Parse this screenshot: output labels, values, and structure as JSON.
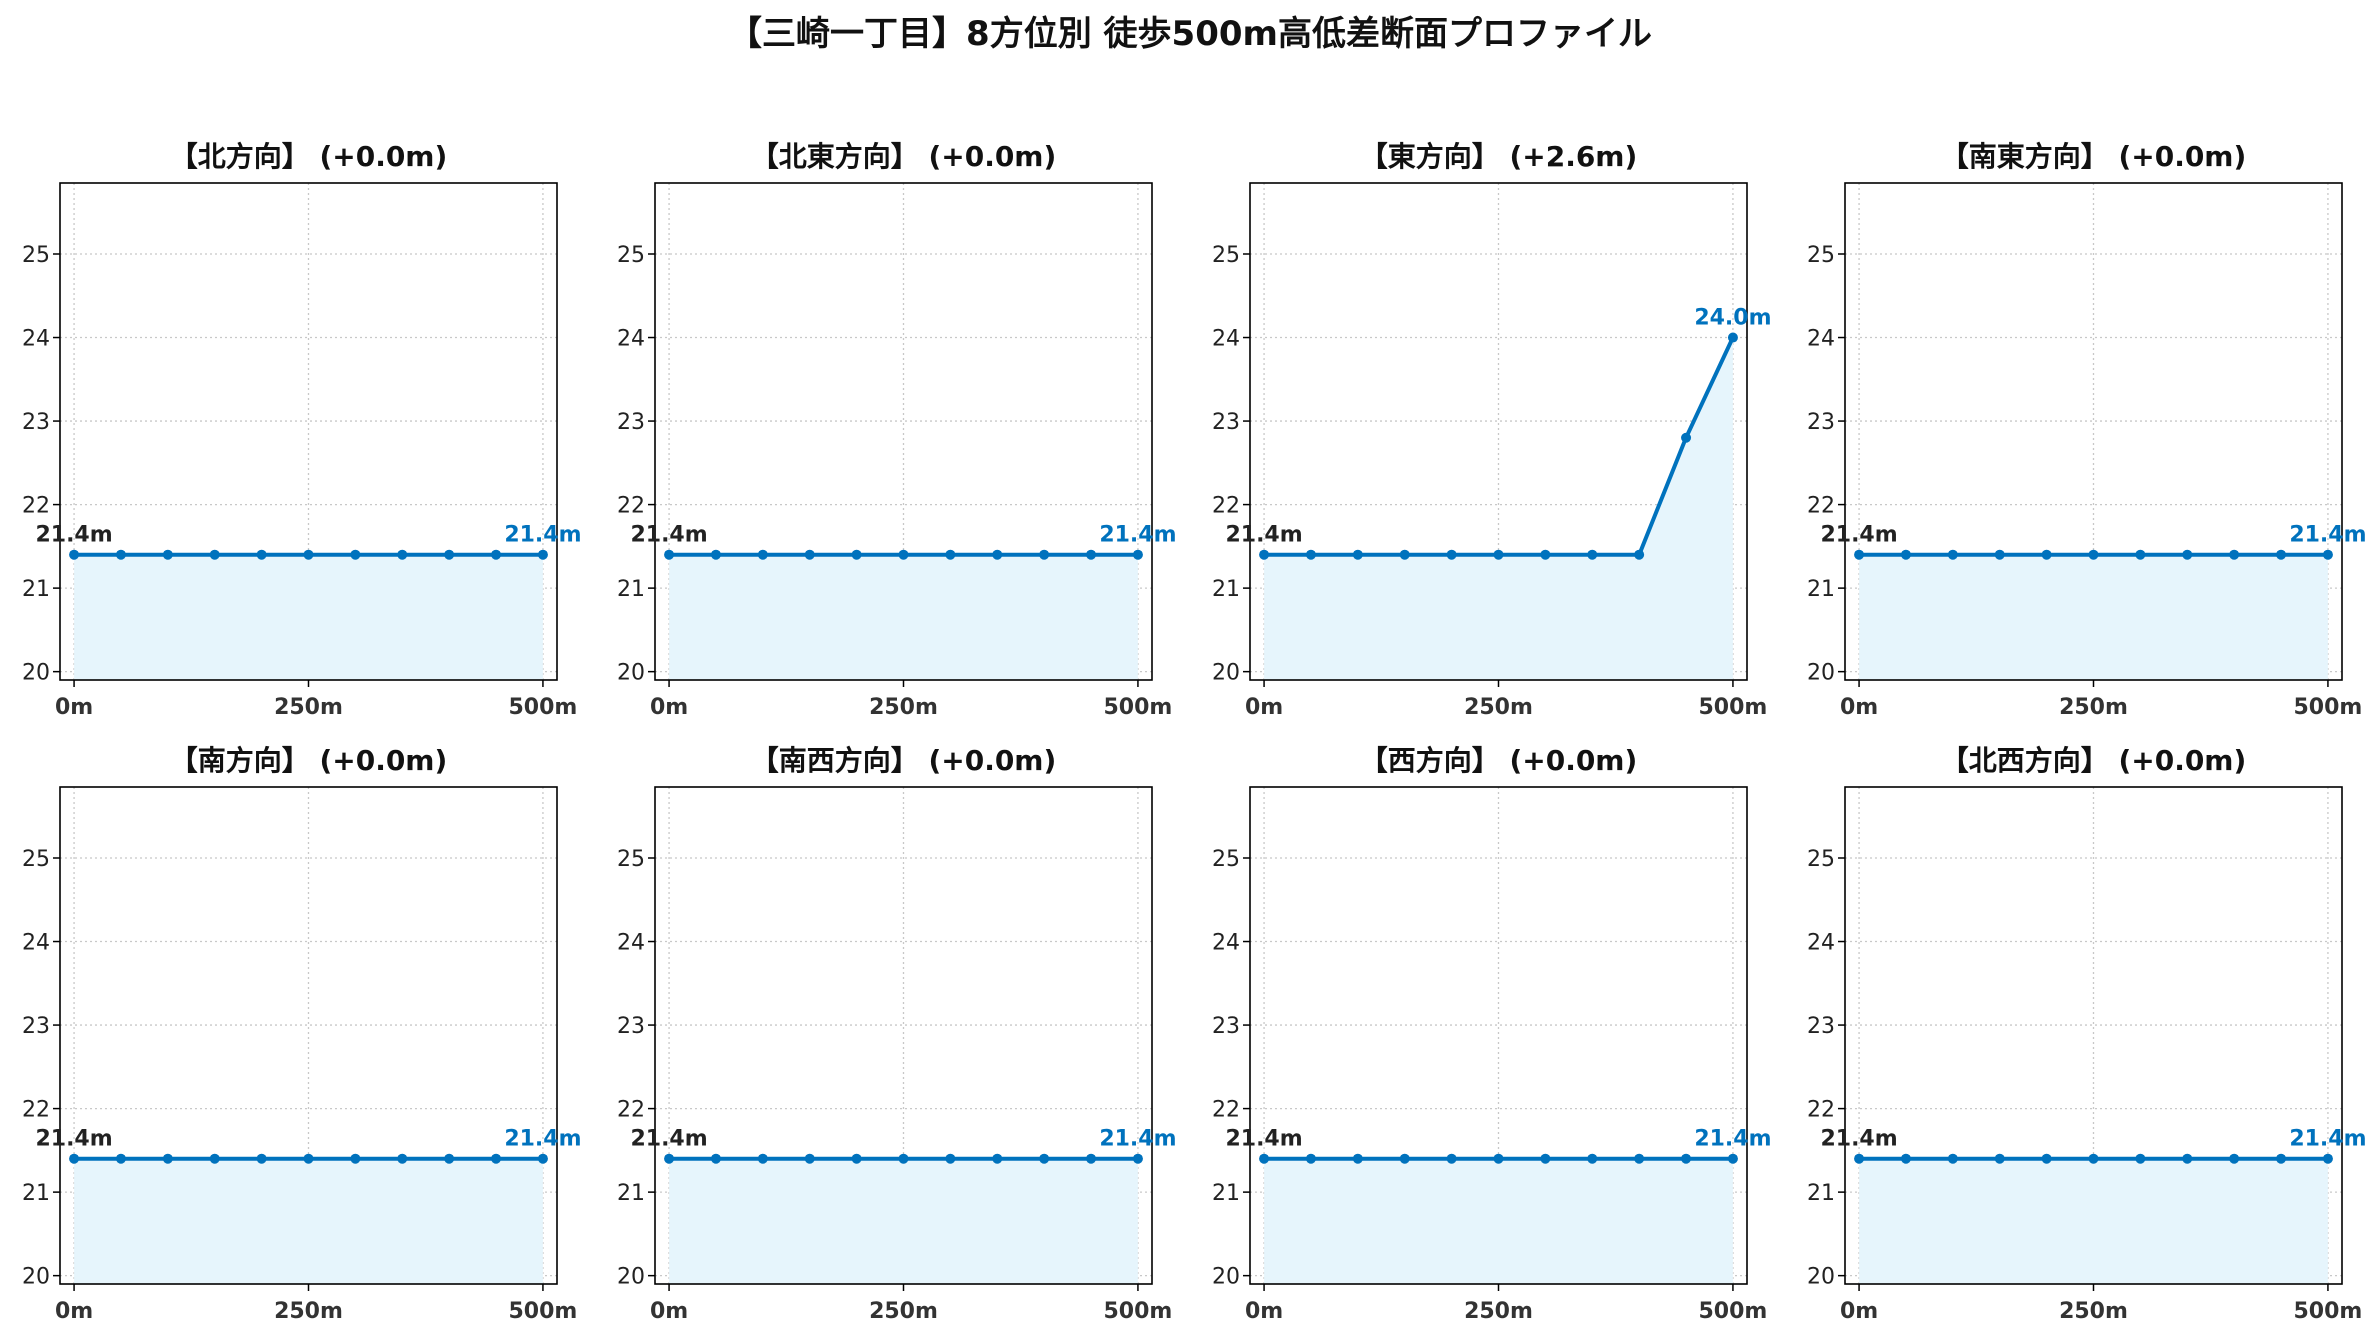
{
  "title": "【三崎一丁目】8方位別 徒歩500m高低差断面プロファイル",
  "colors": {
    "line": "#0072BD",
    "fill": "#E6F5FC",
    "grid": "#C8C8C8",
    "startLabel": "#222222",
    "endLabel": "#0072BD"
  },
  "chart_data": [
    {
      "type": "area",
      "title": "【北方向】 (+0.0m)",
      "x": [
        0,
        50,
        100,
        150,
        200,
        250,
        300,
        350,
        400,
        450,
        500
      ],
      "y": [
        21.4,
        21.4,
        21.4,
        21.4,
        21.4,
        21.4,
        21.4,
        21.4,
        21.4,
        21.4,
        21.4
      ],
      "xticks": [
        "0m",
        "250m",
        "500m"
      ],
      "yticks": [
        20,
        21,
        22,
        23,
        24,
        25
      ],
      "ylim": [
        19.9,
        25.85
      ],
      "xlim": [
        -15,
        515
      ],
      "grid": true,
      "start_label": "21.4m",
      "end_label": "21.4m"
    },
    {
      "type": "area",
      "title": "【北東方向】 (+0.0m)",
      "x": [
        0,
        50,
        100,
        150,
        200,
        250,
        300,
        350,
        400,
        450,
        500
      ],
      "y": [
        21.4,
        21.4,
        21.4,
        21.4,
        21.4,
        21.4,
        21.4,
        21.4,
        21.4,
        21.4,
        21.4
      ],
      "xticks": [
        "0m",
        "250m",
        "500m"
      ],
      "yticks": [
        20,
        21,
        22,
        23,
        24,
        25
      ],
      "ylim": [
        19.9,
        25.85
      ],
      "xlim": [
        -15,
        515
      ],
      "grid": true,
      "start_label": "21.4m",
      "end_label": "21.4m"
    },
    {
      "type": "area",
      "title": "【東方向】 (+2.6m)",
      "x": [
        0,
        50,
        100,
        150,
        200,
        250,
        300,
        350,
        400,
        450,
        500
      ],
      "y": [
        21.4,
        21.4,
        21.4,
        21.4,
        21.4,
        21.4,
        21.4,
        21.4,
        21.4,
        22.8,
        24.0
      ],
      "xticks": [
        "0m",
        "250m",
        "500m"
      ],
      "yticks": [
        20,
        21,
        22,
        23,
        24,
        25
      ],
      "ylim": [
        19.9,
        25.85
      ],
      "xlim": [
        -15,
        515
      ],
      "grid": true,
      "start_label": "21.4m",
      "end_label": "24.0m"
    },
    {
      "type": "area",
      "title": "【南東方向】 (+0.0m)",
      "x": [
        0,
        50,
        100,
        150,
        200,
        250,
        300,
        350,
        400,
        450,
        500
      ],
      "y": [
        21.4,
        21.4,
        21.4,
        21.4,
        21.4,
        21.4,
        21.4,
        21.4,
        21.4,
        21.4,
        21.4
      ],
      "xticks": [
        "0m",
        "250m",
        "500m"
      ],
      "yticks": [
        20,
        21,
        22,
        23,
        24,
        25
      ],
      "ylim": [
        19.9,
        25.85
      ],
      "xlim": [
        -15,
        515
      ],
      "grid": true,
      "start_label": "21.4m",
      "end_label": "21.4m"
    },
    {
      "type": "area",
      "title": "【南方向】 (+0.0m)",
      "x": [
        0,
        50,
        100,
        150,
        200,
        250,
        300,
        350,
        400,
        450,
        500
      ],
      "y": [
        21.4,
        21.4,
        21.4,
        21.4,
        21.4,
        21.4,
        21.4,
        21.4,
        21.4,
        21.4,
        21.4
      ],
      "xticks": [
        "0m",
        "250m",
        "500m"
      ],
      "yticks": [
        20,
        21,
        22,
        23,
        24,
        25
      ],
      "ylim": [
        19.9,
        25.85
      ],
      "xlim": [
        -15,
        515
      ],
      "grid": true,
      "start_label": "21.4m",
      "end_label": "21.4m"
    },
    {
      "type": "area",
      "title": "【南西方向】 (+0.0m)",
      "x": [
        0,
        50,
        100,
        150,
        200,
        250,
        300,
        350,
        400,
        450,
        500
      ],
      "y": [
        21.4,
        21.4,
        21.4,
        21.4,
        21.4,
        21.4,
        21.4,
        21.4,
        21.4,
        21.4,
        21.4
      ],
      "xticks": [
        "0m",
        "250m",
        "500m"
      ],
      "yticks": [
        20,
        21,
        22,
        23,
        24,
        25
      ],
      "ylim": [
        19.9,
        25.85
      ],
      "xlim": [
        -15,
        515
      ],
      "grid": true,
      "start_label": "21.4m",
      "end_label": "21.4m"
    },
    {
      "type": "area",
      "title": "【西方向】 (+0.0m)",
      "x": [
        0,
        50,
        100,
        150,
        200,
        250,
        300,
        350,
        400,
        450,
        500
      ],
      "y": [
        21.4,
        21.4,
        21.4,
        21.4,
        21.4,
        21.4,
        21.4,
        21.4,
        21.4,
        21.4,
        21.4
      ],
      "xticks": [
        "0m",
        "250m",
        "500m"
      ],
      "yticks": [
        20,
        21,
        22,
        23,
        24,
        25
      ],
      "ylim": [
        19.9,
        25.85
      ],
      "xlim": [
        -15,
        515
      ],
      "grid": true,
      "start_label": "21.4m",
      "end_label": "21.4m"
    },
    {
      "type": "area",
      "title": "【北西方向】 (+0.0m)",
      "x": [
        0,
        50,
        100,
        150,
        200,
        250,
        300,
        350,
        400,
        450,
        500
      ],
      "y": [
        21.4,
        21.4,
        21.4,
        21.4,
        21.4,
        21.4,
        21.4,
        21.4,
        21.4,
        21.4,
        21.4
      ],
      "xticks": [
        "0m",
        "250m",
        "500m"
      ],
      "yticks": [
        20,
        21,
        22,
        23,
        24,
        25
      ],
      "ylim": [
        19.9,
        25.85
      ],
      "xlim": [
        -15,
        515
      ],
      "grid": true,
      "start_label": "21.4m",
      "end_label": "21.4m"
    }
  ]
}
